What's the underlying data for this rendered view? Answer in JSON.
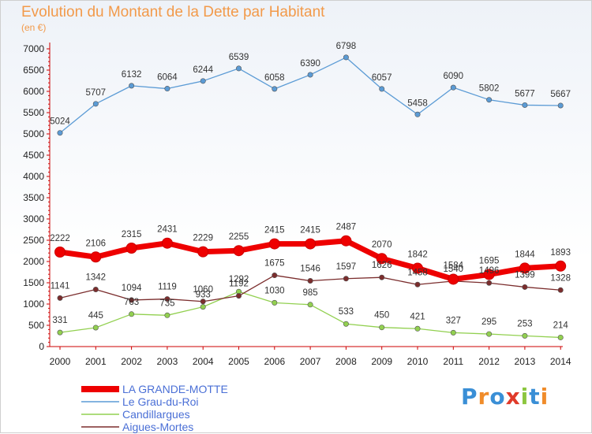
{
  "title": "Evolution du Montant de la Dette par Habitant",
  "subtitle": "(en €)",
  "logo_text": "Proxiti",
  "chart_data": {
    "type": "line",
    "title": "Evolution du Montant de la Dette par Habitant",
    "subtitle": "(en €)",
    "xlabel": "",
    "ylabel": "",
    "ylim": [
      0,
      7000
    ],
    "yticks": [
      0,
      500,
      1000,
      1500,
      2000,
      2500,
      3000,
      3500,
      4000,
      4500,
      5000,
      5500,
      6000,
      6500,
      7000
    ],
    "x": [
      "2000",
      "2001",
      "2002",
      "2003",
      "2004",
      "2005",
      "2006",
      "2007",
      "2008",
      "2009",
      "2010",
      "2011",
      "2012",
      "2013",
      "2014"
    ],
    "grid": false,
    "legend_position": "bottom-left",
    "series": [
      {
        "name": "LA GRANDE-MOTTE",
        "color": "#ee0000",
        "values": [
          2222,
          2106,
          2315,
          2431,
          2229,
          2255,
          2415,
          2415,
          2487,
          2070,
          1842,
          1584,
          1695,
          1844,
          1893
        ]
      },
      {
        "name": "Le Grau-du-Roi",
        "color": "#5b9bd5",
        "values": [
          5024,
          5707,
          6132,
          6064,
          6244,
          6539,
          6058,
          6390,
          6798,
          6057,
          5458,
          6090,
          5802,
          5677,
          5667
        ]
      },
      {
        "name": "Candillargues",
        "color": "#92d050",
        "values": [
          331,
          445,
          763,
          735,
          933,
          1292,
          1030,
          985,
          533,
          450,
          421,
          327,
          295,
          253,
          214
        ]
      },
      {
        "name": "Aigues-Mortes",
        "color": "#7b2d2d",
        "values": [
          1141,
          1342,
          1094,
          1119,
          1060,
          1192,
          1675,
          1546,
          1597,
          1626,
          1458,
          1540,
          1496,
          1399,
          1328
        ]
      }
    ]
  }
}
